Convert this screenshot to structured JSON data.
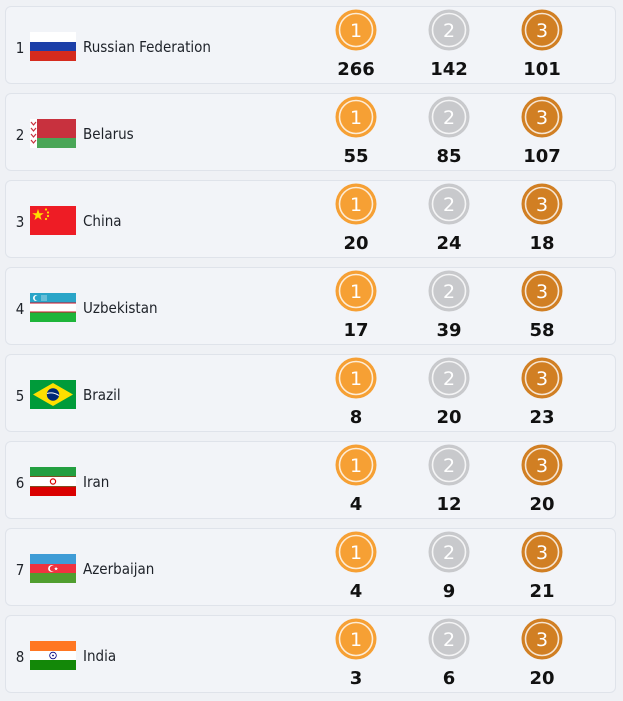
{
  "colors": {
    "gold": "#f6a034",
    "silver": "#c8c9cc",
    "bronze": "#d17f23"
  },
  "medal_labels": {
    "gold": "1",
    "silver": "2",
    "bronze": "3"
  },
  "rows": [
    {
      "rank": "1",
      "country": "Russian Federation",
      "flag": "russia-flag",
      "gold": "266",
      "silver": "142",
      "bronze": "101"
    },
    {
      "rank": "2",
      "country": "Belarus",
      "flag": "belarus-flag",
      "gold": "55",
      "silver": "85",
      "bronze": "107"
    },
    {
      "rank": "3",
      "country": "China",
      "flag": "china-flag",
      "gold": "20",
      "silver": "24",
      "bronze": "18"
    },
    {
      "rank": "4",
      "country": "Uzbekistan",
      "flag": "uzbekistan-flag",
      "gold": "17",
      "silver": "39",
      "bronze": "58"
    },
    {
      "rank": "5",
      "country": "Brazil",
      "flag": "brazil-flag",
      "gold": "8",
      "silver": "20",
      "bronze": "23"
    },
    {
      "rank": "6",
      "country": "Iran",
      "flag": "iran-flag",
      "gold": "4",
      "silver": "12",
      "bronze": "20"
    },
    {
      "rank": "7",
      "country": "Azerbaijan",
      "flag": "azerbaijan-flag",
      "gold": "4",
      "silver": "9",
      "bronze": "21"
    },
    {
      "rank": "8",
      "country": "India",
      "flag": "india-flag",
      "gold": "3",
      "silver": "6",
      "bronze": "20"
    }
  ]
}
